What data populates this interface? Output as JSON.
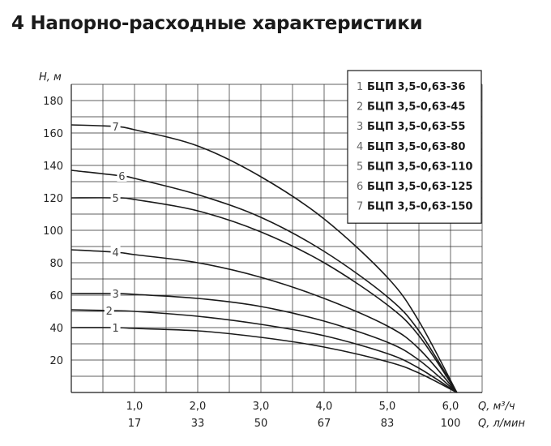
{
  "title": "4 Напорно-расходные характеристики",
  "chart_data": {
    "type": "line",
    "title": "4 Напорно-расходные характеристики",
    "ylabel": "H, м",
    "xlabel": "Q, м³/ч",
    "xlabel2": "Q, л/мин",
    "xlim": [
      0,
      6.5
    ],
    "ylim": [
      0,
      190
    ],
    "grid": true,
    "legend_position": "top-right",
    "x_ticks": [
      {
        "value": 1.0,
        "label": "1,0",
        "label2": "17"
      },
      {
        "value": 2.0,
        "label": "2,0",
        "label2": "33"
      },
      {
        "value": 3.0,
        "label": "3,0",
        "label2": "50"
      },
      {
        "value": 4.0,
        "label": "4,0",
        "label2": "67"
      },
      {
        "value": 5.0,
        "label": "5,0",
        "label2": "83"
      },
      {
        "value": 6.0,
        "label": "6,0",
        "label2": "100"
      }
    ],
    "y_ticks": [
      {
        "value": 20,
        "label": "20"
      },
      {
        "value": 40,
        "label": "40"
      },
      {
        "value": 60,
        "label": "60"
      },
      {
        "value": 80,
        "label": "80"
      },
      {
        "value": 100,
        "label": "100"
      },
      {
        "value": 120,
        "label": "120"
      },
      {
        "value": 140,
        "label": "140"
      },
      {
        "value": 160,
        "label": "160"
      },
      {
        "value": 180,
        "label": "180"
      }
    ],
    "series": [
      {
        "label": "1",
        "name": "БЦП 3,5-0,63-36",
        "x": [
          0,
          0.7,
          1,
          2,
          3,
          4,
          5,
          5.5,
          6.1
        ],
        "y": [
          40,
          40,
          39.5,
          38,
          34,
          28,
          19,
          12,
          0
        ]
      },
      {
        "label": "2",
        "name": "БЦП 3,5-0,63-45",
        "x": [
          0,
          0.6,
          1,
          2,
          3,
          4,
          5,
          5.5,
          6.1
        ],
        "y": [
          51,
          50.5,
          50,
          47,
          42,
          35,
          24,
          15,
          0
        ]
      },
      {
        "label": "3",
        "name": "БЦП 3,5-0,63-55",
        "x": [
          0,
          0.7,
          1,
          2,
          3,
          4,
          5,
          5.5,
          6.1
        ],
        "y": [
          61,
          61,
          60.5,
          58,
          53,
          44,
          31,
          20,
          0
        ]
      },
      {
        "label": "4",
        "name": "БЦП 3,5-0,63-80",
        "x": [
          0,
          0.7,
          1,
          2,
          3,
          4,
          5,
          5.5,
          6.1
        ],
        "y": [
          88,
          86.5,
          85,
          80,
          71,
          58,
          41,
          27,
          0
        ]
      },
      {
        "label": "5",
        "name": "БЦП 3,5-0,63-110",
        "x": [
          0,
          0.7,
          1,
          2,
          3,
          4,
          5,
          5.5,
          6.1
        ],
        "y": [
          120,
          120,
          119,
          112,
          99,
          80,
          54,
          35,
          0
        ]
      },
      {
        "label": "6",
        "name": "БЦП 3,5-0,63-125",
        "x": [
          0,
          0.8,
          1,
          2,
          3,
          4,
          5,
          5.5,
          6.1
        ],
        "y": [
          137,
          133.5,
          132,
          122,
          108,
          87,
          59,
          38,
          0
        ]
      },
      {
        "label": "7",
        "name": "БЦП 3,5-0,63-150",
        "x": [
          0,
          0.7,
          1,
          2,
          3,
          4,
          5,
          5.5,
          6.1
        ],
        "y": [
          165,
          164,
          162,
          152,
          133,
          107,
          71,
          44,
          0
        ]
      }
    ]
  }
}
